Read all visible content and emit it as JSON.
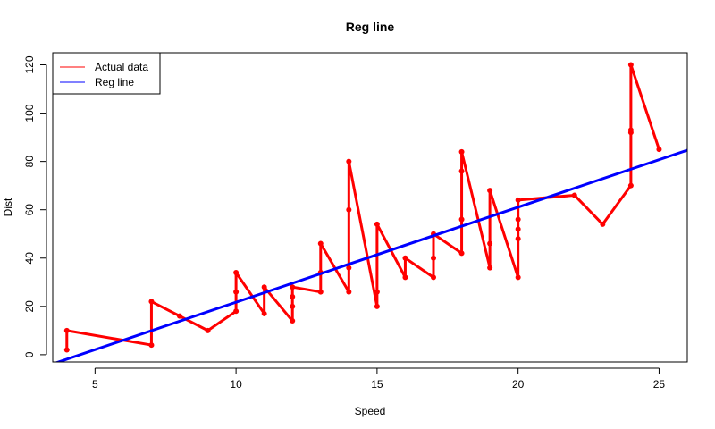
{
  "chart_data": {
    "type": "line",
    "title": "Reg line",
    "xlabel": "Speed",
    "ylabel": "Dist",
    "xlim": [
      3.5,
      26
    ],
    "ylim": [
      -3,
      125
    ],
    "x_ticks": [
      5,
      10,
      15,
      20,
      25
    ],
    "y_ticks": [
      0,
      20,
      40,
      60,
      80,
      100,
      120
    ],
    "grid": false,
    "legend_position": "top-left",
    "series": [
      {
        "name": "Actual data",
        "color": "#ff0000",
        "mark": "line-with-points",
        "points": [
          [
            4,
            2
          ],
          [
            4,
            10
          ],
          [
            7,
            4
          ],
          [
            7,
            22
          ],
          [
            8,
            16
          ],
          [
            9,
            10
          ],
          [
            10,
            18
          ],
          [
            10,
            26
          ],
          [
            10,
            34
          ],
          [
            11,
            17
          ],
          [
            11,
            28
          ],
          [
            12,
            14
          ],
          [
            12,
            20
          ],
          [
            12,
            24
          ],
          [
            12,
            28
          ],
          [
            13,
            26
          ],
          [
            13,
            34
          ],
          [
            13,
            34
          ],
          [
            13,
            46
          ],
          [
            14,
            26
          ],
          [
            14,
            36
          ],
          [
            14,
            60
          ],
          [
            14,
            80
          ],
          [
            15,
            20
          ],
          [
            15,
            26
          ],
          [
            15,
            54
          ],
          [
            16,
            32
          ],
          [
            16,
            40
          ],
          [
            17,
            32
          ],
          [
            17,
            40
          ],
          [
            17,
            50
          ],
          [
            18,
            42
          ],
          [
            18,
            56
          ],
          [
            18,
            76
          ],
          [
            18,
            84
          ],
          [
            19,
            36
          ],
          [
            19,
            46
          ],
          [
            19,
            68
          ],
          [
            20,
            32
          ],
          [
            20,
            48
          ],
          [
            20,
            52
          ],
          [
            20,
            56
          ],
          [
            20,
            64
          ],
          [
            22,
            66
          ],
          [
            23,
            54
          ],
          [
            24,
            70
          ],
          [
            24,
            92
          ],
          [
            24,
            93
          ],
          [
            24,
            120
          ],
          [
            25,
            85
          ]
        ]
      },
      {
        "name": "Reg line",
        "color": "#0000ff",
        "mark": "line",
        "intercept": -17.579,
        "slope": 3.932
      }
    ]
  }
}
